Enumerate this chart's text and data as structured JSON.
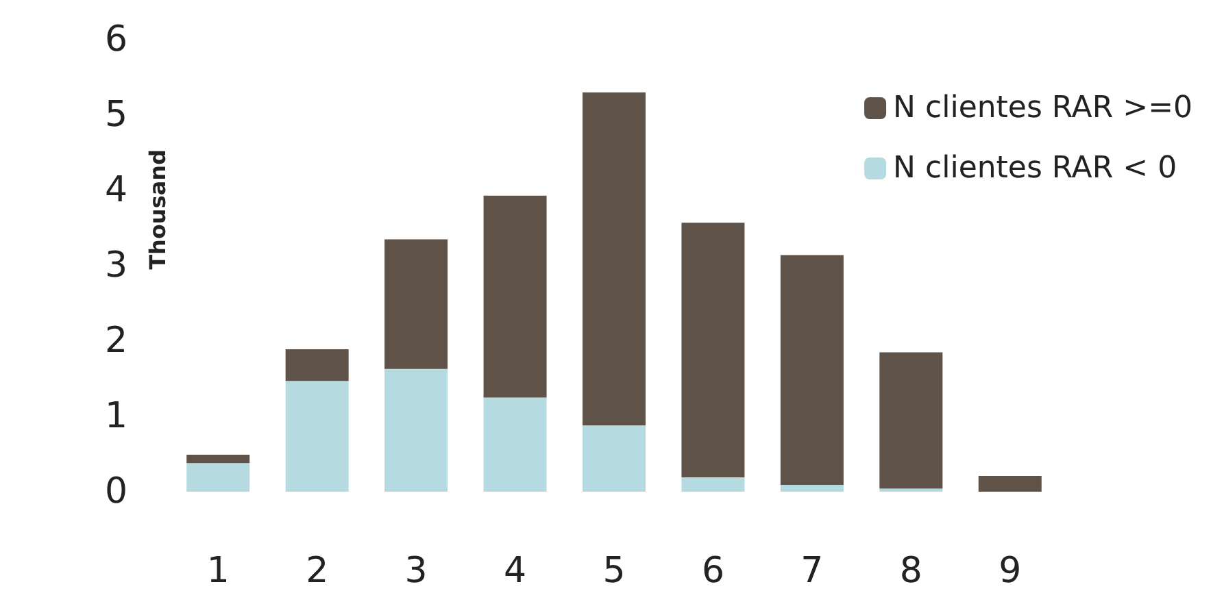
{
  "chart_data": {
    "type": "bar",
    "stacked": true,
    "ylabel": "Thousand",
    "categories": [
      "1",
      "2",
      "3",
      "4",
      "5",
      "6",
      "7",
      "8",
      "9"
    ],
    "series": [
      {
        "name": "N clientes RAR < 0",
        "color": "#b5dbe0",
        "values": [
          0.38,
          1.47,
          1.63,
          1.25,
          0.88,
          0.19,
          0.09,
          0.04,
          0
        ]
      },
      {
        "name": "N clientes RAR >=0",
        "color": "#5f5248",
        "values": [
          0.11,
          0.42,
          1.72,
          2.68,
          4.42,
          3.38,
          3.05,
          1.81,
          0.21
        ]
      }
    ],
    "ylim": [
      0,
      6
    ],
    "yticks": [
      0,
      1,
      2,
      3,
      4,
      5,
      6
    ],
    "legend": "top right",
    "grid": false
  }
}
